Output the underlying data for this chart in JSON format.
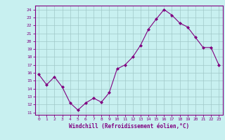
{
  "x": [
    0,
    1,
    2,
    3,
    4,
    5,
    6,
    7,
    8,
    9,
    10,
    11,
    12,
    13,
    14,
    15,
    16,
    17,
    18,
    19,
    20,
    21,
    22,
    23
  ],
  "y": [
    15.8,
    14.5,
    15.5,
    14.2,
    12.2,
    11.3,
    12.2,
    12.8,
    12.3,
    13.5,
    16.5,
    17.0,
    18.0,
    19.5,
    21.5,
    22.8,
    24.0,
    23.3,
    22.3,
    21.8,
    20.5,
    19.2,
    19.2,
    17.0
  ],
  "line_color": "#800080",
  "marker": "D",
  "marker_size": 2.0,
  "bg_color": "#c8f0f0",
  "grid_color": "#a0c8c8",
  "xlabel": "Windchill (Refroidissement éolien,°C)",
  "ylabel_ticks": [
    11,
    12,
    13,
    14,
    15,
    16,
    17,
    18,
    19,
    20,
    21,
    22,
    23,
    24
  ],
  "ylim": [
    10.7,
    24.5
  ],
  "xlim": [
    -0.5,
    23.5
  ],
  "title_color": "#800080",
  "axis_color": "#800080",
  "tick_color": "#800080",
  "font_name": "monospace"
}
